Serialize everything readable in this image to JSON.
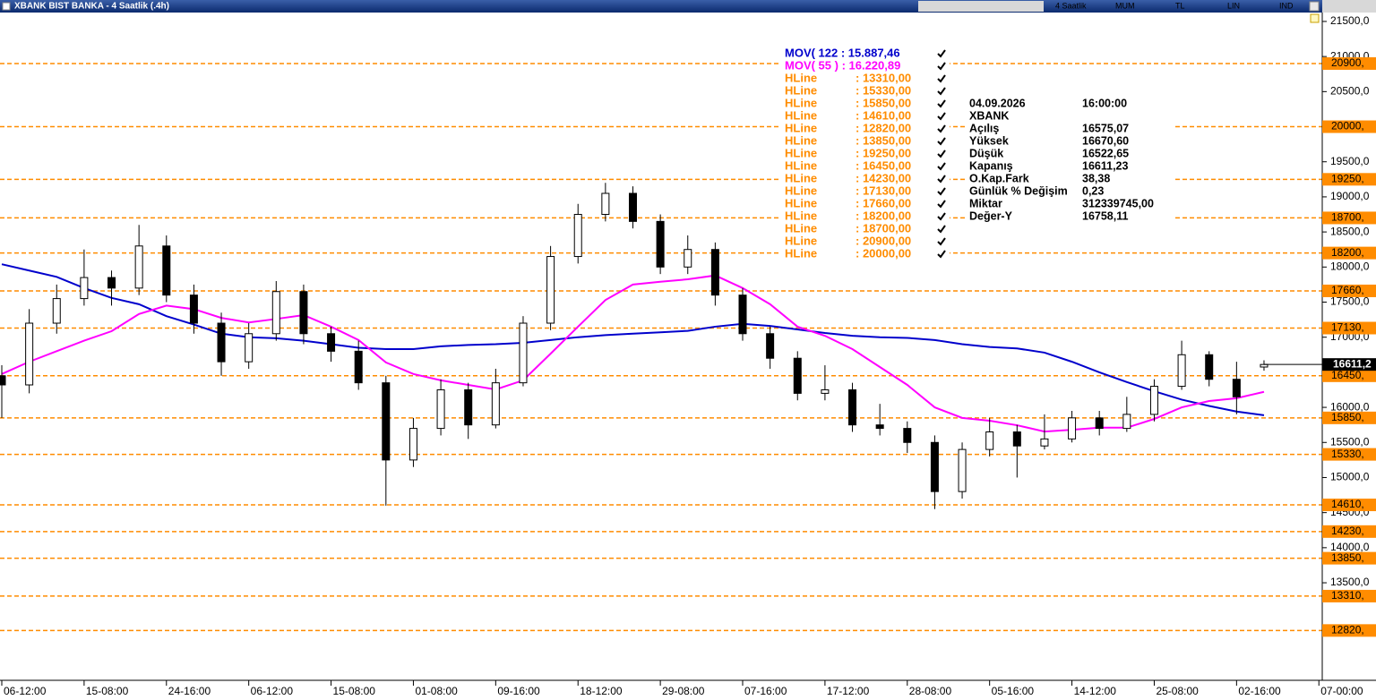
{
  "window": {
    "title": "XBANK BIST BANKA - 4 Saatlik (.4h)",
    "toolbar": [
      "4 Saatlik",
      "MUM",
      "TL",
      "LIN",
      "IND"
    ]
  },
  "chart_data": {
    "type": "candlestick",
    "categories": [
      "06-12:00",
      null,
      null,
      "15-08:00",
      null,
      null,
      "24-16:00",
      null,
      null,
      "06-12:00",
      null,
      null,
      "15-08:00",
      null,
      null,
      "01-08:00",
      null,
      null,
      "09-16:00",
      null,
      null,
      "18-12:00",
      null,
      null,
      "29-08:00",
      null,
      null,
      "07-16:00",
      null,
      null,
      "17-12:00",
      null,
      null,
      "28-08:00",
      null,
      null,
      "05-16:00",
      null,
      null,
      "14-12:00",
      null,
      null,
      "25-08:00",
      null,
      null,
      "02-16:00",
      null,
      null,
      "07-00:00"
    ],
    "open": [
      16450,
      16320,
      17200,
      17550,
      17850,
      17700,
      18300,
      17600,
      17200,
      16650,
      17050,
      17650,
      17050,
      16800,
      16350,
      15250,
      15700,
      16250,
      15750,
      16350,
      17200,
      18150,
      18750,
      19050,
      18650,
      18000,
      18250,
      17600,
      17050,
      16700,
      16200,
      16250,
      15750,
      15700,
      15500,
      14800,
      15400,
      15650,
      15450,
      15550,
      15850,
      15700,
      15900,
      16300,
      16750,
      16400,
      16575.07,
      null,
      null
    ],
    "high": [
      16600,
      17400,
      17750,
      18250,
      17950,
      18600,
      18450,
      17750,
      17350,
      17200,
      17800,
      17750,
      17150,
      16950,
      16450,
      15850,
      16400,
      16350,
      16550,
      17300,
      18300,
      18900,
      19200,
      19150,
      18750,
      18450,
      18350,
      17700,
      17150,
      16800,
      16600,
      16350,
      16050,
      15800,
      15600,
      15500,
      15850,
      15750,
      15900,
      15950,
      15950,
      16150,
      16400,
      16950,
      16800,
      16650,
      16670.6,
      null,
      null
    ],
    "low": [
      15850,
      16200,
      17050,
      17450,
      17450,
      17600,
      17500,
      17050,
      16450,
      16550,
      16950,
      16900,
      16650,
      16250,
      14600,
      15150,
      15600,
      15550,
      15700,
      16300,
      17100,
      18050,
      18650,
      18550,
      17900,
      17900,
      17450,
      16950,
      16550,
      16100,
      16100,
      15650,
      15600,
      15350,
      14550,
      14700,
      15300,
      15000,
      15400,
      15500,
      15600,
      15650,
      15800,
      16250,
      16300,
      15900,
      16522.65,
      null,
      null
    ],
    "close": [
      16320,
      17200,
      17550,
      17850,
      17700,
      18300,
      17600,
      17200,
      16650,
      17050,
      17650,
      17050,
      16800,
      16350,
      15250,
      15700,
      16250,
      15750,
      16350,
      17200,
      18150,
      18750,
      19050,
      18650,
      18000,
      18250,
      17600,
      17050,
      16700,
      16200,
      16250,
      15750,
      15700,
      15500,
      14800,
      15400,
      15650,
      15450,
      15550,
      15850,
      15700,
      15900,
      16300,
      16750,
      16400,
      16150,
      16611.23,
      null,
      null
    ],
    "close_label": "16611,2",
    "series": [
      {
        "name": "MOV( 122 : 15.887,46",
        "color": "#0000cc",
        "values": [
          18040,
          17950,
          17860,
          17700,
          17560,
          17470,
          17300,
          17180,
          17050,
          17000,
          16985,
          16950,
          16900,
          16850,
          16830,
          16830,
          16870,
          16890,
          16900,
          16920,
          16960,
          17000,
          17030,
          17050,
          17070,
          17090,
          17150,
          17190,
          17160,
          17110,
          17060,
          17020,
          17000,
          16990,
          16960,
          16900,
          16860,
          16840,
          16780,
          16650,
          16500,
          16360,
          16230,
          16110,
          16020,
          15940,
          15887.46,
          null,
          null
        ]
      },
      {
        "name": "MOV( 55 ) : 16.220,89",
        "color": "#ff00ff",
        "values": [
          16475,
          16650,
          16800,
          16950,
          17085,
          17330,
          17450,
          17400,
          17275,
          17210,
          17260,
          17315,
          17150,
          16960,
          16640,
          16475,
          16385,
          16320,
          16255,
          16385,
          16765,
          17150,
          17530,
          17750,
          17790,
          17825,
          17880,
          17700,
          17470,
          17150,
          17020,
          16830,
          16575,
          16320,
          16000,
          15850,
          15810,
          15745,
          15655,
          15680,
          15710,
          15710,
          15835,
          16000,
          16090,
          16130,
          16220.89,
          null,
          null
        ]
      }
    ],
    "hlines": {
      "name": "HLine",
      "color": "#ff8c00",
      "values": [
        13310,
        15330,
        15850,
        14610,
        12820,
        13850,
        19250,
        16450,
        14230,
        17130,
        17660,
        18200,
        18700,
        20900,
        20000
      ],
      "value_labels": [
        ": 13310,00",
        ": 15330,00",
        ": 15850,00",
        ": 14610,00",
        ": 12820,00",
        ": 13850,00",
        ": 19250,00",
        ": 16450,00",
        ": 14230,00",
        ": 17130,00",
        ": 17660,00",
        ": 18200,00",
        ": 18700,00",
        ": 20900,00",
        ": 20000,00"
      ],
      "axis_labels": [
        "13310,",
        "15330,",
        "15850,",
        "14610,",
        "12820,",
        "13850,",
        "19250,",
        "16450,",
        "14230,",
        "17130,",
        "17660,",
        "18200,",
        "18700,",
        "20900,",
        "20000,"
      ]
    },
    "ylim": [
      12110,
      21627
    ],
    "yticks": [
      {
        "value": 13500,
        "label": "13500,0"
      },
      {
        "value": 14000,
        "label": "14000,0"
      },
      {
        "value": 14500,
        "label": "14500,0"
      },
      {
        "value": 15000,
        "label": "15000,0"
      },
      {
        "value": 15500,
        "label": "15500,0"
      },
      {
        "value": 16000,
        "label": "16000,0"
      },
      {
        "value": 17000,
        "label": "17000,0"
      },
      {
        "value": 17500,
        "label": "17500,0"
      },
      {
        "value": 18000,
        "label": "18000,0"
      },
      {
        "value": 18500,
        "label": "18500,0"
      },
      {
        "value": 19000,
        "label": "19000,0"
      },
      {
        "value": 19500,
        "label": "19500,0"
      },
      {
        "value": 20500,
        "label": "20500,0"
      },
      {
        "value": 21000,
        "label": "21000,0"
      },
      {
        "value": 21500,
        "label": "21500,0"
      }
    ],
    "grid": false
  },
  "info": [
    [
      "04.09.2026",
      "16:00:00"
    ],
    [
      "XBANK"
    ],
    [
      "Açılış",
      "16575,07"
    ],
    [
      "Yüksek",
      "16670,60"
    ],
    [
      "Düşük",
      "16522,65"
    ],
    [
      "Kapanış",
      "16611,23"
    ],
    [
      "O.Kap.Fark",
      "38,38"
    ],
    [
      "Günlük % Değişim",
      "0,23"
    ],
    [
      "Miktar",
      "312339745,00"
    ],
    [
      "Değer-Y",
      "16758,11"
    ]
  ]
}
